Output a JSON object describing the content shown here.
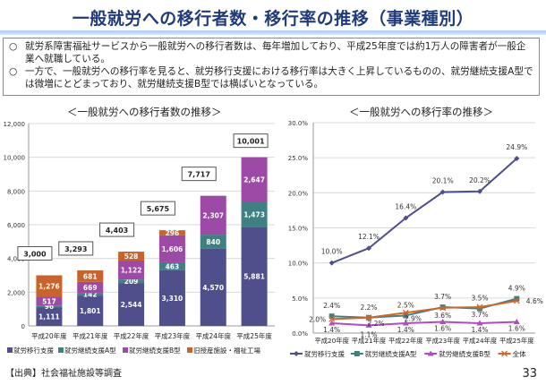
{
  "page": {
    "title": "一般就労への移行者数・移行率の推移（事業種別）",
    "notes": [
      {
        "bullet": "○",
        "text": "就労系障害福祉サービスから一般就労への移行者数は、毎年増加しており、平成25年度では約1万人の障害者が一般企業へ就職している。"
      },
      {
        "bullet": "○",
        "text": "一方で、一般就労への移行率を見ると、就労移行支援における移行率は大きく上昇しているものの、就労継続支援A型では微増にとどまっており、就労継続支援B型では横ばいとなっている。"
      }
    ],
    "source": "【出典】社会福祉施設等調査",
    "page_number": "33"
  },
  "chart_data": [
    {
      "type": "bar",
      "stacked": true,
      "title": "＜一般就労への移行者数の推移＞",
      "categories": [
        "平成20年度",
        "平成21年度",
        "平成22年度",
        "平成23年度",
        "平成24年度",
        "平成25年度"
      ],
      "series": [
        {
          "name": "就労移行支援",
          "color": "#4f4f8c",
          "values": [
            1111,
            1801,
            2544,
            3310,
            4570,
            5881
          ]
        },
        {
          "name": "就労継続支援A型",
          "color": "#3f8080",
          "values": [
            96,
            142,
            209,
            463,
            840,
            1473
          ]
        },
        {
          "name": "就労継続支援B型",
          "color": "#9c4aa6",
          "values": [
            517,
            669,
            1122,
            1606,
            2307,
            2647
          ]
        },
        {
          "name": "旧授産施設・福祉工場",
          "color": "#c8632a",
          "values": [
            1276,
            681,
            528,
            296,
            0,
            0
          ]
        }
      ],
      "totals": [
        "3,000",
        "3,293",
        "4,403",
        "5,675",
        "7,717",
        "10,001"
      ],
      "labels": [
        [
          "1,111",
          "1,801",
          "2,544",
          "3,310",
          "4,570",
          "5,881"
        ],
        [
          "96",
          "142",
          "209",
          "463",
          "840",
          "1,473"
        ],
        [
          "517",
          "669",
          "1,122",
          "1,606",
          "2,307",
          "2,647"
        ],
        [
          "1,276",
          "681",
          "528",
          "296",
          "",
          ""
        ]
      ],
      "ylim": [
        0,
        12000
      ],
      "yticks": [
        "0",
        "2,000",
        "4,000",
        "6,000",
        "8,000",
        "10,000",
        "12,000"
      ],
      "grid": true,
      "legend": "bottom"
    },
    {
      "type": "line",
      "title": "＜一般就労への移行率の推移＞",
      "categories": [
        "平成20年度",
        "平成21年度",
        "平成22年度",
        "平成23年度",
        "平成24年度",
        "平成25年度"
      ],
      "series": [
        {
          "name": "就労移行支援",
          "color": "#4f4f8c",
          "marker": "diamond",
          "values": [
            10.0,
            12.1,
            16.4,
            20.1,
            20.2,
            24.9
          ]
        },
        {
          "name": "就労継続支援A型",
          "color": "#3f8080",
          "marker": "square",
          "values": [
            2.4,
            2.2,
            2.5,
            3.7,
            3.5,
            4.9
          ]
        },
        {
          "name": "就労継続支援B型",
          "color": "#b04cc0",
          "marker": "triangle",
          "values": [
            1.4,
            1.1,
            1.4,
            1.6,
            1.4,
            1.6
          ]
        },
        {
          "name": "全体",
          "color": "#d0672a",
          "marker": "x",
          "values": [
            2.0,
            2.2,
            2.9,
            3.6,
            3.7,
            4.6
          ]
        }
      ],
      "ylim": [
        0,
        30
      ],
      "yticks": [
        "0.0%",
        "5.0%",
        "10.0%",
        "15.0%",
        "20.0%",
        "25.0%",
        "30.0%"
      ],
      "grid": true,
      "legend": "bottom"
    }
  ]
}
